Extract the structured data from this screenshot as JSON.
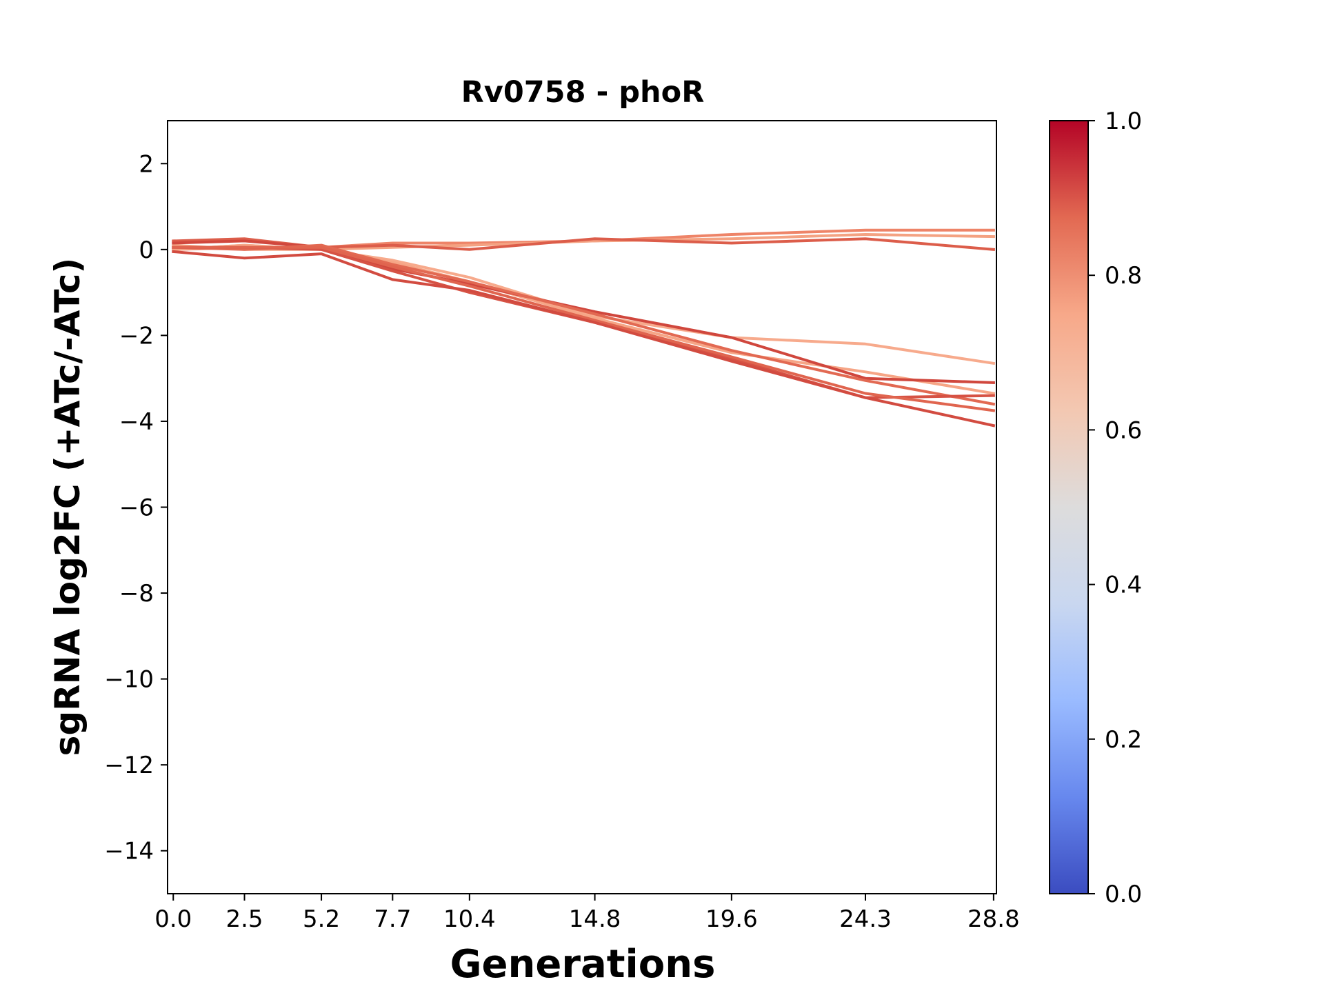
{
  "chart_data": {
    "type": "line",
    "title": "Rv0758 - phoR",
    "xlabel": "Generations",
    "ylabel": "sgRNA log2FC (+ATc/-ATc)",
    "x": [
      0.0,
      2.5,
      5.2,
      7.7,
      10.4,
      14.8,
      19.6,
      24.3,
      28.8
    ],
    "x_tick_labels": [
      "0.0",
      "2.5",
      "5.2",
      "7.7",
      "10.4",
      "14.8",
      "19.6",
      "24.3",
      "28.8"
    ],
    "xlim": [
      -0.2,
      28.9
    ],
    "ylim": [
      -15,
      3
    ],
    "y_ticks": [
      2,
      0,
      -2,
      -4,
      -6,
      -8,
      -10,
      -12,
      -14
    ],
    "y_tick_labels": [
      "2",
      "0",
      "−2",
      "−4",
      "−6",
      "−8",
      "−10",
      "−12",
      "−14"
    ],
    "grid": false,
    "legend": "none",
    "colormap": "coolwarm",
    "colorbar": {
      "range": [
        0.0,
        1.0
      ],
      "ticks": [
        0.0,
        0.2,
        0.4,
        0.6,
        0.8,
        1.0
      ],
      "tick_labels": [
        "0.0",
        "0.2",
        "0.4",
        "0.6",
        "0.8",
        "1.0"
      ],
      "stops": [
        "#3b4cc0",
        "#6788ee",
        "#9abbff",
        "#c9d7f0",
        "#dddcdc",
        "#f3c8b2",
        "#f7a889",
        "#e26952",
        "#b40426"
      ]
    },
    "series": [
      {
        "color": "#ee8468",
        "values": [
          0.0,
          0.05,
          0.05,
          0.15,
          0.15,
          0.2,
          0.35,
          0.45,
          0.45
        ]
      },
      {
        "color": "#f4a282",
        "values": [
          0.1,
          0.0,
          0.0,
          0.05,
          0.1,
          0.2,
          0.25,
          0.35,
          0.3
        ]
      },
      {
        "color": "#dc5d4a",
        "values": [
          0.2,
          0.25,
          0.05,
          0.1,
          0.0,
          0.25,
          0.15,
          0.25,
          0.0
        ]
      },
      {
        "color": "#f7aa8c",
        "values": [
          0.0,
          0.1,
          0.0,
          -0.25,
          -0.65,
          -1.55,
          -2.05,
          -2.2,
          -2.65
        ]
      },
      {
        "color": "#f6a586",
        "values": [
          0.0,
          0.1,
          0.0,
          -0.3,
          -0.75,
          -1.6,
          -2.4,
          -2.85,
          -3.35
        ]
      },
      {
        "color": "#d0473d",
        "values": [
          0.15,
          0.2,
          0.05,
          -0.45,
          -0.8,
          -1.45,
          -2.05,
          -3.0,
          -3.1
        ]
      },
      {
        "color": "#e26952",
        "values": [
          0.05,
          0.0,
          0.1,
          -0.35,
          -0.75,
          -1.5,
          -2.35,
          -3.05,
          -3.6
        ]
      },
      {
        "color": "#d65244",
        "values": [
          0.05,
          0.05,
          0.0,
          -0.5,
          -1.0,
          -1.7,
          -2.55,
          -3.45,
          -3.4
        ]
      },
      {
        "color": "#e0654f",
        "values": [
          0.05,
          0.05,
          0.05,
          -0.4,
          -0.85,
          -1.65,
          -2.5,
          -3.35,
          -3.75
        ]
      },
      {
        "color": "#d24b40",
        "values": [
          -0.05,
          -0.2,
          -0.1,
          -0.7,
          -0.95,
          -1.7,
          -2.6,
          -3.45,
          -4.1
        ]
      }
    ]
  }
}
